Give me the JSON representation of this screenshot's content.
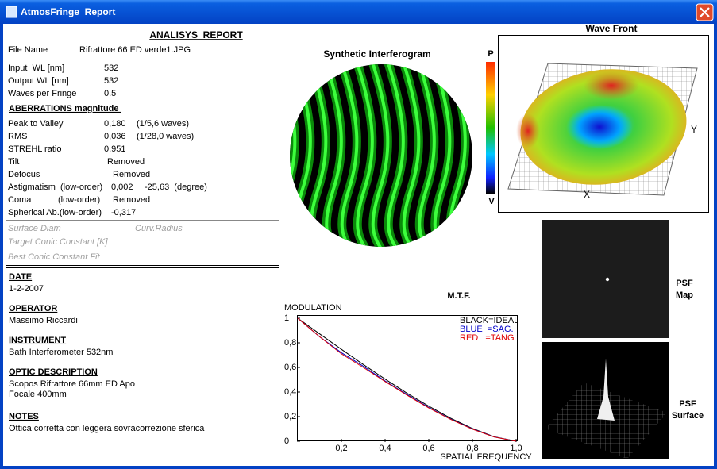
{
  "window": {
    "title": "AtmosFringe  Report"
  },
  "report": {
    "heading": "ANALISYS  REPORT",
    "rows": [
      [
        "File Name",
        "Rifrattore 66 ED verde1.JPG"
      ],
      [
        "Input  WL [nm]",
        "532"
      ],
      [
        "Output WL [nm]",
        "532"
      ],
      [
        "Waves per Fringe",
        "0.5"
      ],
      [
        "Peak to Valley",
        "0,180",
        "(1/5,6 waves)"
      ],
      [
        "RMS",
        "0,036",
        "(1/28,0 waves)"
      ],
      [
        "STREHL ratio",
        "0,951"
      ],
      [
        "Tilt",
        "Removed"
      ],
      [
        "Defocus",
        "Removed"
      ],
      [
        "Astigmatism  (low-order)",
        "0,002",
        "-25,63  (degree)"
      ],
      [
        "Coma",
        "(low-order)",
        "Removed"
      ],
      [
        "Spherical Ab.(low-order)",
        "-0,317"
      ]
    ],
    "section": "ABERRATIONS magnitude ",
    "surface": [
      "Surface Diam",
      "Curv.Radius",
      "Target Conic Constant [K]",
      "Best Conic Constant Fit"
    ]
  },
  "info": [
    {
      "heading": "DATE",
      "lines": [
        "1-2-2007"
      ]
    },
    {
      "heading": "OPERATOR",
      "lines": [
        "Massimo Riccardi"
      ]
    },
    {
      "heading": "INSTRUMENT",
      "lines": [
        "Bath Interferometer 532nm"
      ]
    },
    {
      "heading": "OPTIC DESCRIPTION",
      "lines": [
        "Scopos Rifrattore 66mm ED Apo",
        "Focale 400mm"
      ]
    },
    {
      "heading": "NOTES",
      "lines": [
        "Ottica corretta con leggera sovracorrezione sferica"
      ]
    }
  ],
  "images": {
    "interferogram": "Synthetic Interferogram",
    "wavefront": "Wave Front",
    "peak": "P",
    "valley": "V",
    "x_axis": "X",
    "y_axis": "Y",
    "psf_map": [
      "PSF",
      "Map"
    ],
    "psf_surface": [
      "PSF",
      "Surface"
    ]
  },
  "chart_data": {
    "type": "line",
    "title": "M.T.F.",
    "y_label": "MODULATION",
    "x_label": "SPATIAL FREQUENCY",
    "x": [
      0,
      0.1,
      0.2,
      0.3,
      0.4,
      0.5,
      0.6,
      0.7,
      0.8,
      0.9,
      1.0
    ],
    "xlim": [
      0,
      1
    ],
    "ylim": [
      0,
      1
    ],
    "xticks": [
      {
        "value": 0.2,
        "label": "0,2"
      },
      {
        "value": 0.4,
        "label": "0,4"
      },
      {
        "value": 0.6,
        "label": "0,6"
      },
      {
        "value": 0.8,
        "label": "0,8"
      },
      {
        "value": 1.0,
        "label": "1,0"
      }
    ],
    "yticks": [
      0,
      {
        "value": 0.2,
        "label": "0,2"
      },
      {
        "value": 0.4,
        "label": "0,4"
      },
      {
        "value": 0.6,
        "label": "0,6"
      },
      {
        "value": 0.8,
        "label": "0,8"
      },
      1
    ],
    "legend": "upper right",
    "series": [
      {
        "name": "BLACK=IDEAL",
        "color": "#000000",
        "values": [
          1,
          0.873,
          0.747,
          0.624,
          0.505,
          0.391,
          0.285,
          0.188,
          0.104,
          0.036,
          0
        ]
      },
      {
        "name": "BLUE  =SAG.",
        "color": "#0000c8",
        "values": [
          1,
          0.85,
          0.72,
          0.61,
          0.49,
          0.38,
          0.275,
          0.18,
          0.1,
          0.035,
          0
        ]
      },
      {
        "name": "RED   =TANG",
        "color": "#e00000",
        "values": [
          1,
          0.85,
          0.71,
          0.6,
          0.485,
          0.375,
          0.27,
          0.178,
          0.098,
          0.034,
          0
        ]
      }
    ]
  }
}
